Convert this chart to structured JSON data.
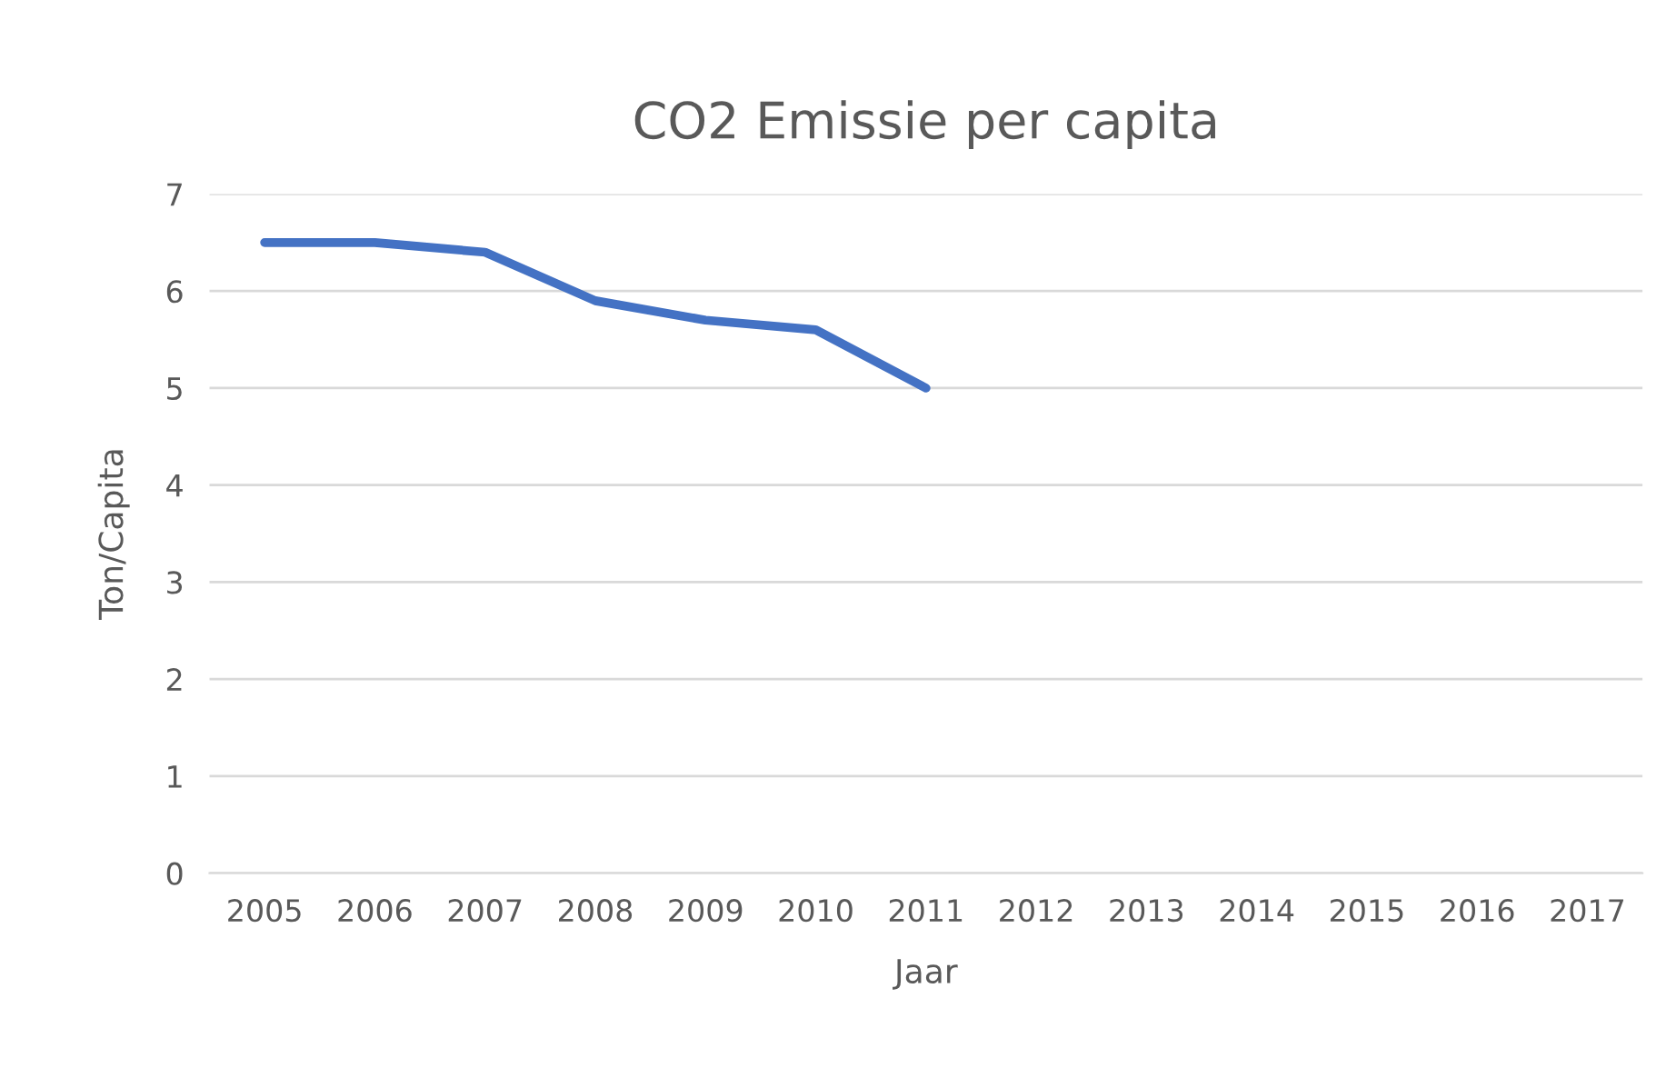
{
  "chart_data": {
    "type": "line",
    "title": "CO2 Emissie per capita",
    "xlabel": "Jaar",
    "ylabel": "Ton/Capita",
    "categories": [
      "2005",
      "2006",
      "2007",
      "2008",
      "2009",
      "2010",
      "2011",
      "2012",
      "2013",
      "2014",
      "2015",
      "2016",
      "2017"
    ],
    "series": [
      {
        "color": "#4472c4",
        "values": [
          6.5,
          6.5,
          6.4,
          5.9,
          5.7,
          5.6,
          5.0,
          null,
          null,
          null,
          null,
          null,
          null
        ]
      }
    ],
    "ylim": [
      0,
      7
    ],
    "yticks": [
      0,
      1,
      2,
      3,
      4,
      5,
      6,
      7
    ],
    "grid": "y",
    "marker": "none",
    "line_style": "solid"
  }
}
